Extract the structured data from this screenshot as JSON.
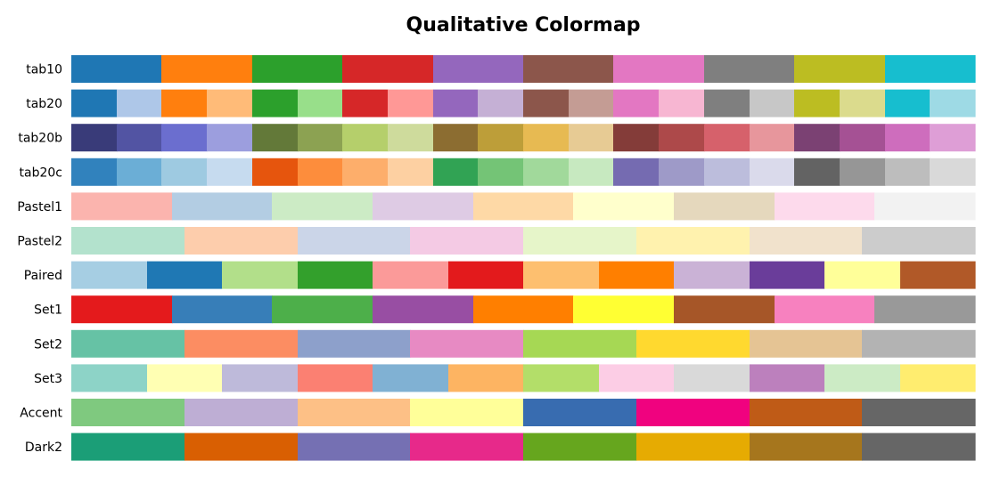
{
  "chart_data": {
    "type": "table",
    "title": "Qualitative Colormap",
    "xlabel": "",
    "ylabel": "",
    "grid": false,
    "legend": "none",
    "rows": [
      {
        "name": "tab10",
        "colors": [
          "#1f77b4",
          "#ff7f0e",
          "#2ca02c",
          "#d62728",
          "#9467bd",
          "#8c564b",
          "#e377c2",
          "#7f7f7f",
          "#bcbd22",
          "#17becf"
        ]
      },
      {
        "name": "tab20",
        "colors": [
          "#1f77b4",
          "#aec7e8",
          "#ff7f0e",
          "#ffbb78",
          "#2ca02c",
          "#98df8a",
          "#d62728",
          "#ff9896",
          "#9467bd",
          "#c5b0d5",
          "#8c564b",
          "#c49c94",
          "#e377c2",
          "#f7b6d2",
          "#7f7f7f",
          "#c7c7c7",
          "#bcbd22",
          "#dbdb8d",
          "#17becf",
          "#9edae5"
        ]
      },
      {
        "name": "tab20b",
        "colors": [
          "#393b79",
          "#5254a3",
          "#6b6ecf",
          "#9c9ede",
          "#637939",
          "#8ca252",
          "#b5cf6b",
          "#cedb9c",
          "#8c6d31",
          "#bd9e39",
          "#e7ba52",
          "#e7cb94",
          "#843c39",
          "#ad494a",
          "#d6616b",
          "#e7969c",
          "#7b4173",
          "#a55194",
          "#ce6dbd",
          "#de9ed6"
        ]
      },
      {
        "name": "tab20c",
        "colors": [
          "#3182bd",
          "#6baed6",
          "#9ecae1",
          "#c6dbef",
          "#e6550d",
          "#fd8d3c",
          "#fdae6b",
          "#fdd0a2",
          "#31a354",
          "#74c476",
          "#a1d99b",
          "#c7e9c0",
          "#756bb1",
          "#9e9ac8",
          "#bcbddc",
          "#dadaeb",
          "#636363",
          "#969696",
          "#bdbdbd",
          "#d9d9d9"
        ]
      },
      {
        "name": "Pastel1",
        "colors": [
          "#fbb4ae",
          "#b3cde3",
          "#ccebc5",
          "#decbe4",
          "#fed9a6",
          "#ffffcc",
          "#e5d8bd",
          "#fddaec",
          "#f2f2f2"
        ]
      },
      {
        "name": "Pastel2",
        "colors": [
          "#b3e2cd",
          "#fdcdac",
          "#cbd5e8",
          "#f4cae4",
          "#e6f5c9",
          "#fff2ae",
          "#f1e2cc",
          "#cccccc"
        ]
      },
      {
        "name": "Paired",
        "colors": [
          "#a6cee3",
          "#1f78b4",
          "#b2df8a",
          "#33a02c",
          "#fb9a99",
          "#e31a1c",
          "#fdbf6f",
          "#ff7f00",
          "#cab2d6",
          "#6a3d9a",
          "#ffff99",
          "#b15928"
        ]
      },
      {
        "name": "Set1",
        "colors": [
          "#e41a1c",
          "#377eb8",
          "#4daf4a",
          "#984ea3",
          "#ff7f00",
          "#ffff33",
          "#a65628",
          "#f781bf",
          "#999999"
        ]
      },
      {
        "name": "Set2",
        "colors": [
          "#66c2a5",
          "#fc8d62",
          "#8da0cb",
          "#e78ac3",
          "#a6d854",
          "#ffd92f",
          "#e5c494",
          "#b3b3b3"
        ]
      },
      {
        "name": "Set3",
        "colors": [
          "#8dd3c7",
          "#ffffb3",
          "#bebada",
          "#fb8072",
          "#80b1d3",
          "#fdb462",
          "#b3de69",
          "#fccde5",
          "#d9d9d9",
          "#bc80bd",
          "#ccebc5",
          "#ffed6f"
        ]
      },
      {
        "name": "Accent",
        "colors": [
          "#7fc97f",
          "#beaed4",
          "#fdc086",
          "#ffff99",
          "#386cb0",
          "#f0027f",
          "#bf5b17",
          "#666666"
        ]
      },
      {
        "name": "Dark2",
        "colors": [
          "#1b9e77",
          "#d95f02",
          "#7570b3",
          "#e7298a",
          "#66a61e",
          "#e6ab02",
          "#a6761d",
          "#666666"
        ]
      }
    ]
  }
}
